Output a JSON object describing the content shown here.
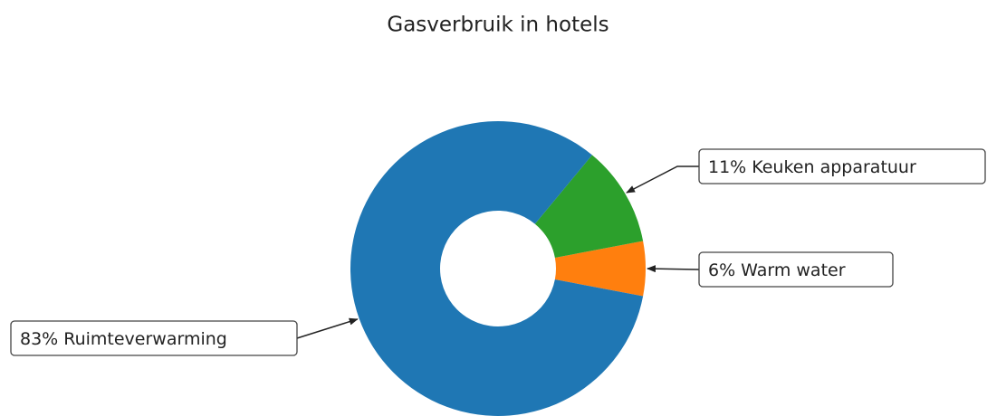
{
  "chart_data": {
    "type": "pie",
    "title": "Gasverbruik in hotels",
    "categories": [
      "Warm water",
      "Keuken apparatuur",
      "Ruimteverwarming"
    ],
    "values": [
      6,
      11,
      83
    ],
    "value_labels": [
      "6%",
      "11%",
      "83%"
    ],
    "colors": [
      "#ff7f0e",
      "#2ca02c",
      "#1f77b4"
    ],
    "donut": true
  }
}
